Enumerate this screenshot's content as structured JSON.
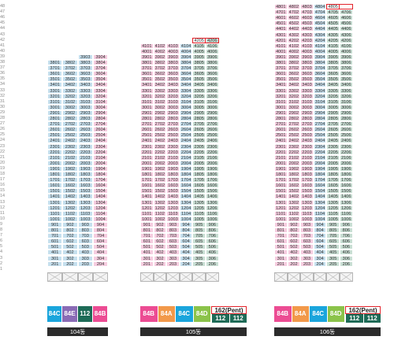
{
  "floor_labels": [
    "48",
    "47",
    "46",
    "45",
    "44",
    "43",
    "42",
    "41",
    "40",
    "39",
    "38",
    "37",
    "36",
    "35",
    "34",
    "33",
    "32",
    "31",
    "30",
    "29",
    "28",
    "27",
    "26",
    "25",
    "24",
    "23",
    "22",
    "21",
    "20",
    "19",
    "18",
    "17",
    "16",
    "15",
    "14",
    "13",
    "12",
    "11",
    "10",
    "9",
    "8",
    "7",
    "6",
    "5",
    "4",
    "3",
    "2",
    "1"
  ],
  "buildings": [
    {
      "name": "104동",
      "top_floor": 39,
      "top_floor_units": [
        3,
        4
      ],
      "column_colors": [
        "b",
        "b",
        "b",
        "k"
      ],
      "unit_types": [
        "84C",
        "84E",
        "112",
        "84B"
      ],
      "legend_colors": [
        "#1aa5dc",
        "#8a6bb5",
        "#1e6b57",
        "#ec4c93"
      ],
      "penthouse": null,
      "highlight_units": []
    },
    {
      "name": "105동",
      "top_floor": 42,
      "top_floor_units": [
        5,
        6
      ],
      "column_colors": [
        "k",
        "k",
        "k",
        "b",
        "g",
        "g"
      ],
      "unit_types": [
        "84B",
        "84A",
        "84C",
        "84D"
      ],
      "legend_colors": [
        "#ec4c93",
        "#f2994a",
        "#1aa5dc",
        "#8bc34a"
      ],
      "penthouse": {
        "label": "162(Pent)",
        "sub": [
          "112",
          "112"
        ]
      },
      "highlight_units": [
        "4205"
      ]
    },
    {
      "name": "106동",
      "top_floor": 48,
      "top_floor_units": [
        1,
        2,
        3,
        4,
        5
      ],
      "column_colors": [
        "k",
        "k",
        "k",
        "b",
        "g",
        "g"
      ],
      "unit_types": [
        "84B",
        "84A",
        "84C",
        "84D"
      ],
      "legend_colors": [
        "#ec4c93",
        "#f2994a",
        "#1aa5dc",
        "#8bc34a"
      ],
      "penthouse": {
        "label": "162(Pent)",
        "sub": [
          "112",
          "112"
        ]
      },
      "highlight_units": [
        "4805"
      ]
    }
  ]
}
